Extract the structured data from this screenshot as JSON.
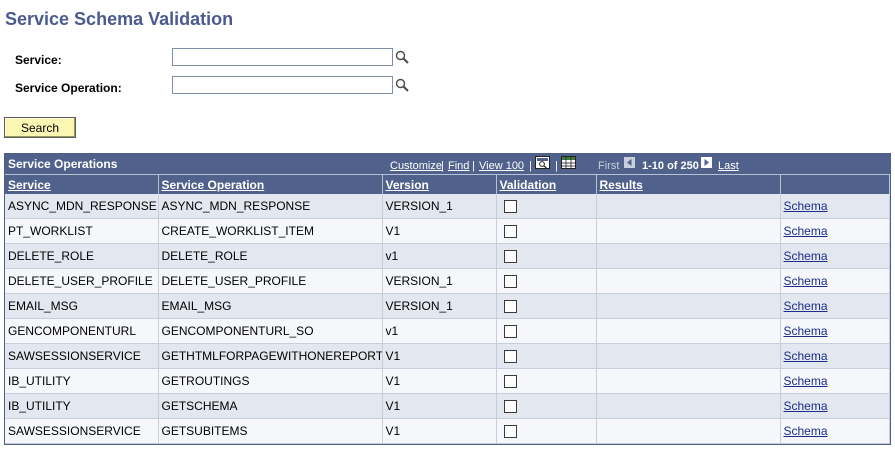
{
  "page": {
    "title": "Service Schema Validation"
  },
  "form": {
    "service_label": "Service:",
    "service_value": "",
    "operation_label": "Service Operation:",
    "operation_value": "",
    "search_label": "Search"
  },
  "grid": {
    "title": "Service Operations",
    "nav": {
      "customize": "Customize",
      "find": "Find",
      "view100": "View 100",
      "first": "First",
      "range": "1-10 of 250",
      "last": "Last"
    },
    "columns": [
      "Service",
      "Service Operation",
      "Version",
      "Validation",
      "Results",
      ""
    ],
    "rows": [
      {
        "service": "ASYNC_MDN_RESPONSE",
        "operation": "ASYNC_MDN_RESPONSE",
        "version": "VERSION_1",
        "results": "",
        "schema": "Schema"
      },
      {
        "service": "PT_WORKLIST",
        "operation": "CREATE_WORKLIST_ITEM",
        "version": "V1",
        "results": "",
        "schema": "Schema"
      },
      {
        "service": "DELETE_ROLE",
        "operation": "DELETE_ROLE",
        "version": "v1",
        "results": "",
        "schema": "Schema"
      },
      {
        "service": "DELETE_USER_PROFILE",
        "operation": "DELETE_USER_PROFILE",
        "version": "VERSION_1",
        "results": "",
        "schema": "Schema"
      },
      {
        "service": "EMAIL_MSG",
        "operation": "EMAIL_MSG",
        "version": "VERSION_1",
        "results": "",
        "schema": "Schema"
      },
      {
        "service": "GENCOMPONENTURL",
        "operation": "GENCOMPONENTURL_SO",
        "version": "v1",
        "results": "",
        "schema": "Schema"
      },
      {
        "service": "SAWSESSIONSERVICE",
        "operation": "GETHTMLFORPAGEWITHONEREPORT",
        "version": "V1",
        "results": "",
        "schema": "Schema"
      },
      {
        "service": "IB_UTILITY",
        "operation": "GETROUTINGS",
        "version": "V1",
        "results": "",
        "schema": "Schema"
      },
      {
        "service": "IB_UTILITY",
        "operation": "GETSCHEMA",
        "version": "V1",
        "results": "",
        "schema": "Schema"
      },
      {
        "service": "SAWSESSIONSERVICE",
        "operation": "GETSUBITEMS",
        "version": "V1",
        "results": "",
        "schema": "Schema"
      }
    ]
  },
  "icons": {
    "lookup": "magnifier-icon",
    "prev": "arrow-left-icon",
    "next": "arrow-right-icon",
    "zoom": "zoom-grid-icon",
    "download": "download-spreadsheet-icon"
  },
  "colors": {
    "title": "#4a5b8f",
    "header": "#50628b",
    "row_even": "#e3e7ef",
    "row_odd": "#f5f7fa",
    "link": "#1b2e8b",
    "button": "#fbf7b3"
  }
}
